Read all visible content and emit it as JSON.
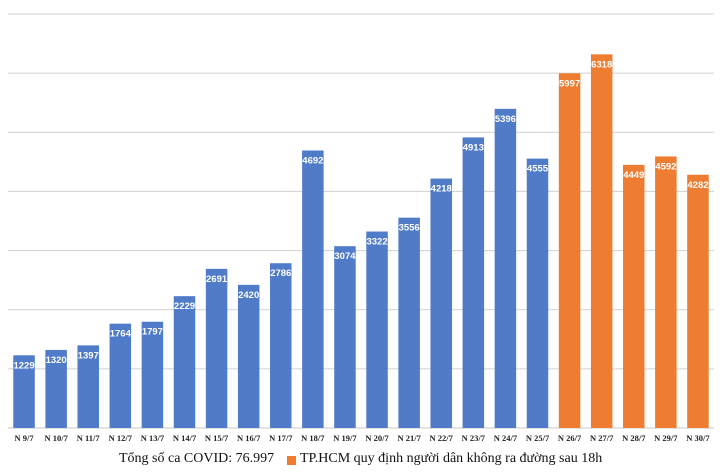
{
  "chart_data": {
    "type": "bar",
    "categories": [
      "N 9/7",
      "N 10/7",
      "N 11/7",
      "N 12/7",
      "N 13/7",
      "N 14/7",
      "N 15/7",
      "N 16/7",
      "N 17/7",
      "N 18/7",
      "N 19/7",
      "N 20/7",
      "N 21/7",
      "N 22/7",
      "N 23/7",
      "N 24/7",
      "N 25/7",
      "N 26/7",
      "N 27/7",
      "N 28/7",
      "N 29/7",
      "N 30/7"
    ],
    "values": [
      1229,
      1320,
      1397,
      1764,
      1797,
      2229,
      2691,
      2420,
      2786,
      4692,
      3074,
      3322,
      3556,
      4218,
      4913,
      5396,
      4555,
      5997,
      6318,
      4449,
      4592,
      4282
    ],
    "highlight_start_index": 17,
    "ylim": [
      0,
      7000
    ],
    "gridlines": [
      1000,
      2000,
      3000,
      4000,
      5000,
      6000,
      7000
    ],
    "grid": true,
    "title": "",
    "xlabel": "",
    "ylabel": "",
    "colors": {
      "base": "#4F7BC8",
      "highlight": "#EE7D31",
      "grid": "#d0d0d0"
    }
  },
  "footer": {
    "total_label": "Tổng số ca COVID: 76.997",
    "legend_label": "TP.HCM quy định người dân không ra đường sau 18h"
  }
}
